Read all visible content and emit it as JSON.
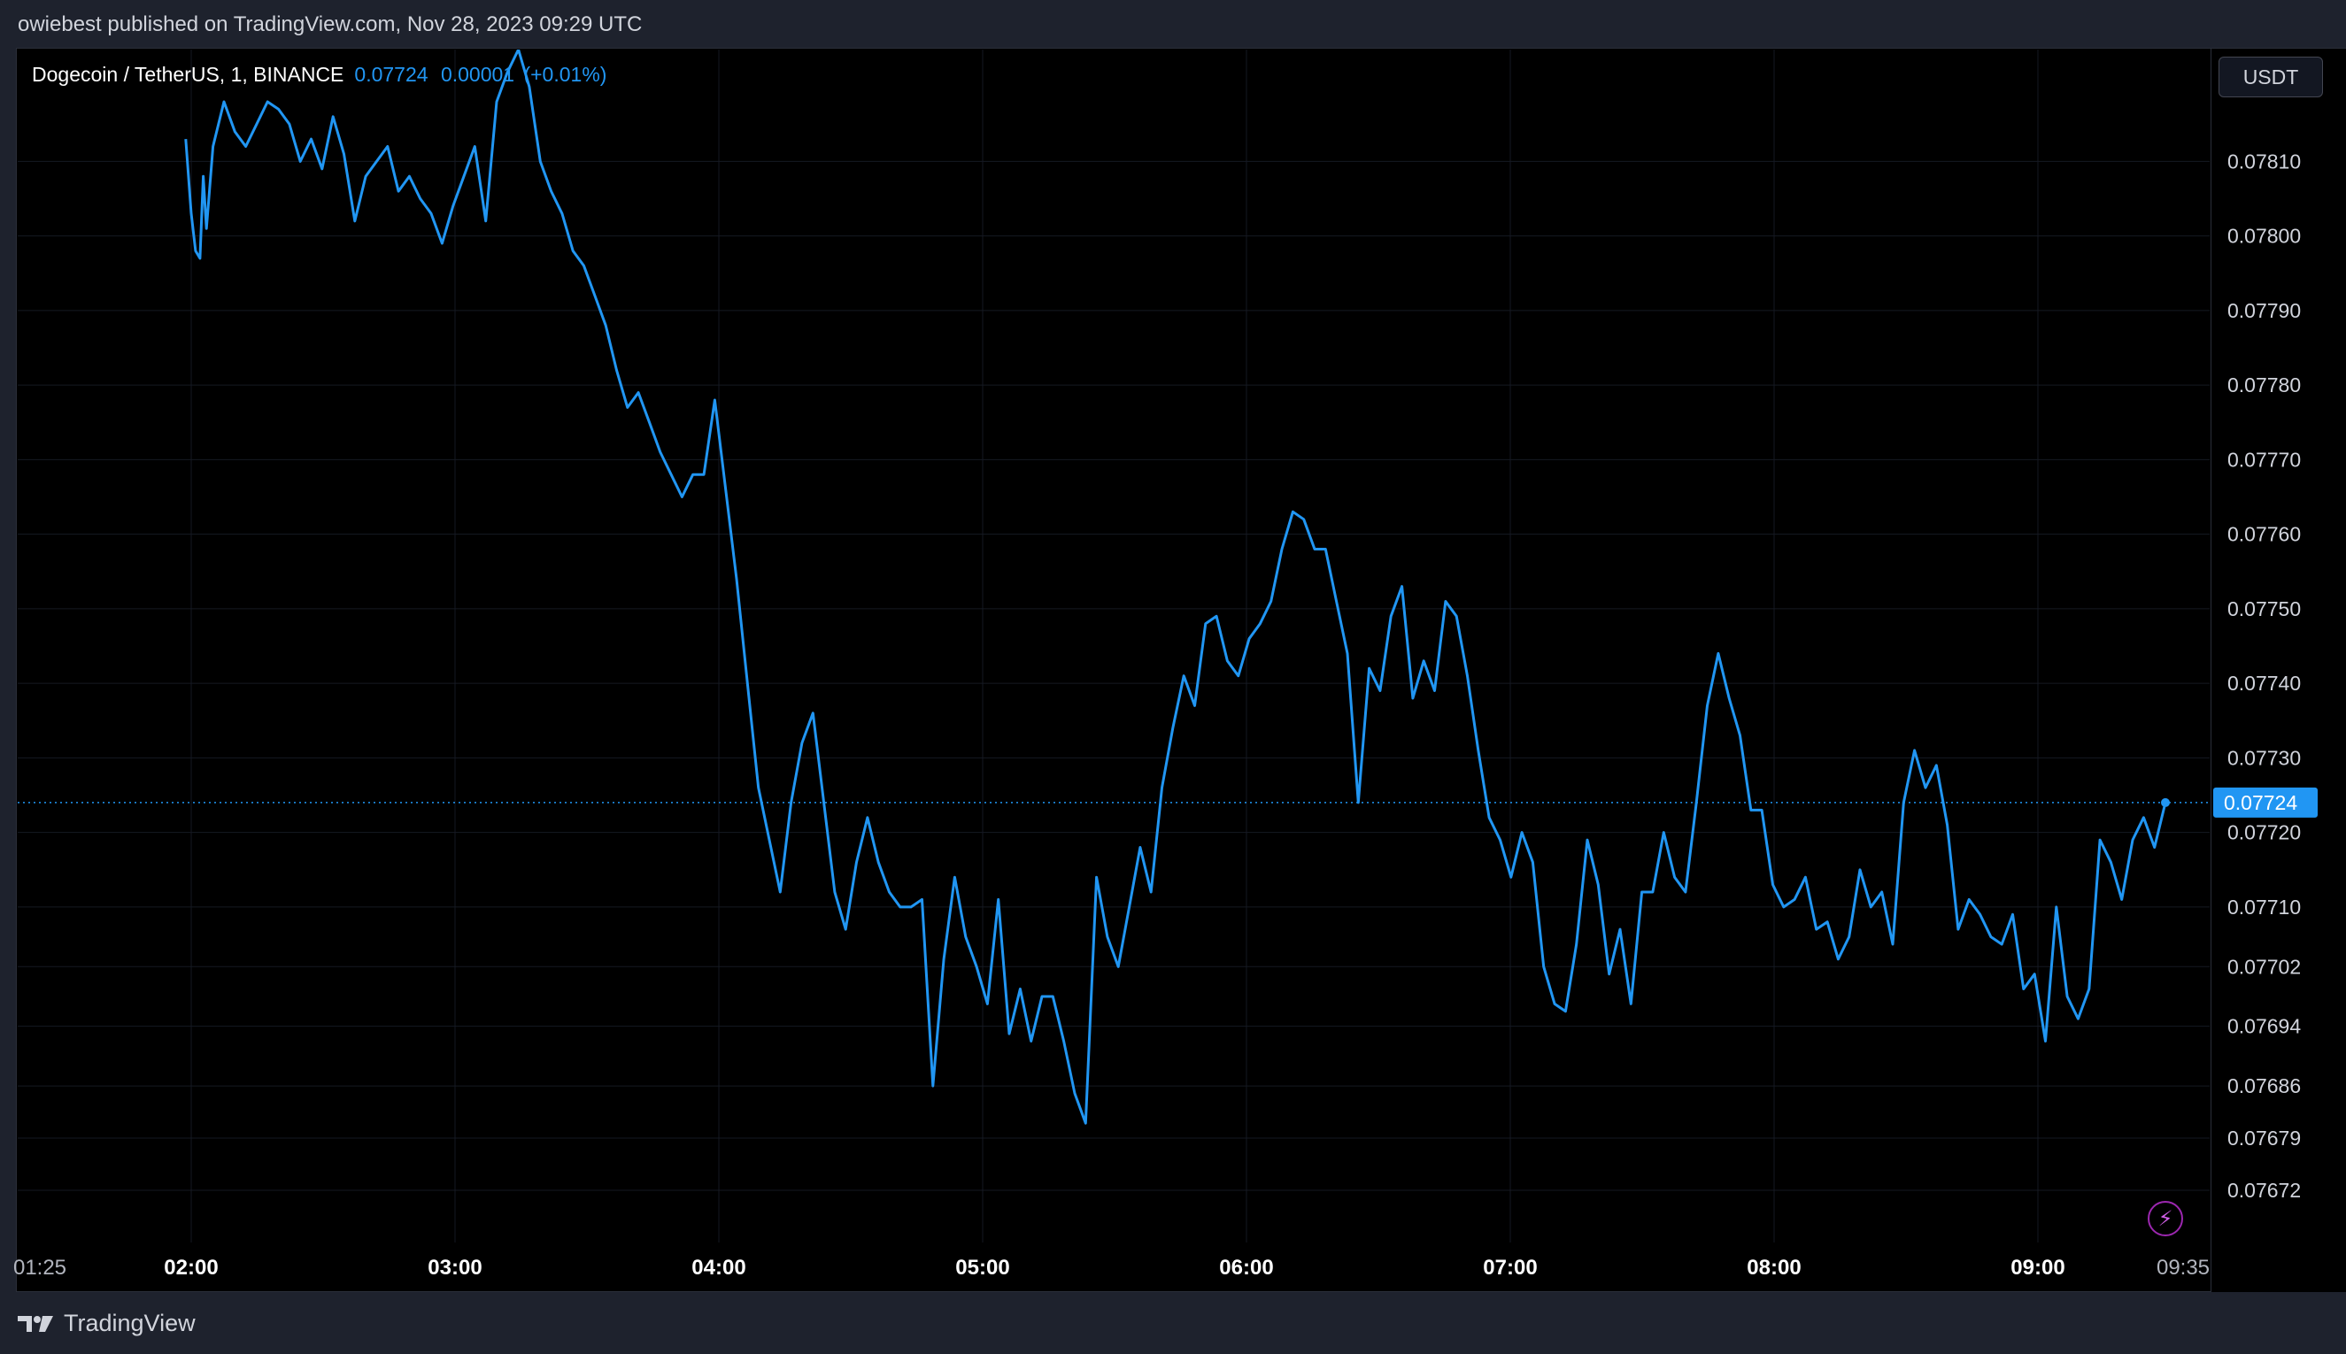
{
  "header": {
    "published_text": "owiebest published on TradingView.com, Nov 28, 2023 09:29 UTC"
  },
  "symbol": {
    "name": "Dogecoin / TetherUS, 1, BINANCE",
    "price": "0.07724",
    "change": "0.00001",
    "change_pct": "(+0.01%)"
  },
  "currency_button": {
    "label": "USDT"
  },
  "footer": {
    "brand": "TradingView"
  },
  "icons": {
    "logo": "tradingview-logo-icon",
    "lightning": "lightning-icon"
  },
  "colors": {
    "line": "#2196f3",
    "background": "#000000",
    "grid": "#151922",
    "text": "#d1d4dc",
    "price_label_bg": "#2196f3"
  },
  "chart_data": {
    "type": "line",
    "y_tick_labels": [
      "0.07810",
      "0.07800",
      "0.07790",
      "0.07780",
      "0.07770",
      "0.07760",
      "0.07750",
      "0.07740",
      "0.07730",
      "0.07720",
      "0.07710",
      "0.07702",
      "0.07694",
      "0.07686",
      "0.07679",
      "0.07672"
    ],
    "x_tick_labels": [
      "01:25",
      "02:00",
      "03:00",
      "04:00",
      "05:00",
      "06:00",
      "07:00",
      "08:00",
      "09:00",
      "09:35"
    ],
    "last_price_label": "0.07724",
    "last_price": 0.07724,
    "series": [
      {
        "values": [
          [
            1.5,
            0.07813
          ],
          [
            2,
            0.07803
          ],
          [
            2.4,
            0.07798
          ],
          [
            2.8,
            0.07797
          ],
          [
            3.1,
            0.07808
          ],
          [
            3.4,
            0.07801
          ],
          [
            4,
            0.07812
          ],
          [
            5,
            0.07818
          ],
          [
            6,
            0.07814
          ],
          [
            7,
            0.07812
          ],
          [
            8,
            0.07815
          ],
          [
            9,
            0.07818
          ],
          [
            10,
            0.07817
          ],
          [
            11,
            0.07815
          ],
          [
            12,
            0.0781
          ],
          [
            13,
            0.07813
          ],
          [
            14,
            0.07809
          ],
          [
            15,
            0.07816
          ],
          [
            16,
            0.07811
          ],
          [
            17,
            0.07802
          ],
          [
            18,
            0.07808
          ],
          [
            19,
            0.0781
          ],
          [
            20,
            0.07812
          ],
          [
            21,
            0.07806
          ],
          [
            22,
            0.07808
          ],
          [
            23,
            0.07805
          ],
          [
            24,
            0.07803
          ],
          [
            25,
            0.07799
          ],
          [
            26,
            0.07804
          ],
          [
            27,
            0.07808
          ],
          [
            28,
            0.07812
          ],
          [
            29,
            0.07802
          ],
          [
            30,
            0.07818
          ],
          [
            31,
            0.07822
          ],
          [
            32,
            0.07825
          ],
          [
            33,
            0.0782
          ],
          [
            34,
            0.0781
          ],
          [
            35,
            0.07806
          ],
          [
            36,
            0.07803
          ],
          [
            37,
            0.07798
          ],
          [
            38,
            0.07796
          ],
          [
            39,
            0.07792
          ],
          [
            40,
            0.07788
          ],
          [
            41,
            0.07782
          ],
          [
            42,
            0.07777
          ],
          [
            43,
            0.07779
          ],
          [
            44,
            0.07775
          ],
          [
            45,
            0.07771
          ],
          [
            46,
            0.07768
          ],
          [
            47,
            0.07765
          ],
          [
            48,
            0.07768
          ],
          [
            49,
            0.07768
          ],
          [
            50,
            0.07778
          ],
          [
            51,
            0.07766
          ],
          [
            52,
            0.07754
          ],
          [
            53,
            0.0774
          ],
          [
            54,
            0.07726
          ],
          [
            55,
            0.07719
          ],
          [
            56,
            0.07712
          ],
          [
            57,
            0.07724
          ],
          [
            58,
            0.07732
          ],
          [
            59,
            0.07736
          ],
          [
            60,
            0.07724
          ],
          [
            61,
            0.07712
          ],
          [
            62,
            0.07707
          ],
          [
            63,
            0.07716
          ],
          [
            64,
            0.07722
          ],
          [
            65,
            0.07716
          ],
          [
            66,
            0.07712
          ],
          [
            67,
            0.0771
          ],
          [
            68,
            0.0771
          ],
          [
            69,
            0.07711
          ],
          [
            70,
            0.07686
          ],
          [
            71,
            0.07703
          ],
          [
            72,
            0.07714
          ],
          [
            73,
            0.07706
          ],
          [
            74,
            0.07702
          ],
          [
            75,
            0.07697
          ],
          [
            76,
            0.07711
          ],
          [
            77,
            0.07693
          ],
          [
            78,
            0.07699
          ],
          [
            79,
            0.07692
          ],
          [
            80,
            0.07698
          ],
          [
            81,
            0.07698
          ],
          [
            82,
            0.07692
          ],
          [
            83,
            0.07685
          ],
          [
            84,
            0.07681
          ],
          [
            85,
            0.07714
          ],
          [
            86,
            0.07706
          ],
          [
            87,
            0.07702
          ],
          [
            88,
            0.0771
          ],
          [
            89,
            0.07718
          ],
          [
            90,
            0.07712
          ],
          [
            91,
            0.07726
          ],
          [
            92,
            0.07734
          ],
          [
            93,
            0.07741
          ],
          [
            94,
            0.07737
          ],
          [
            95,
            0.07748
          ],
          [
            96,
            0.07749
          ],
          [
            97,
            0.07743
          ],
          [
            98,
            0.07741
          ],
          [
            99,
            0.07746
          ],
          [
            100,
            0.07748
          ],
          [
            101,
            0.07751
          ],
          [
            102,
            0.07758
          ],
          [
            103,
            0.07763
          ],
          [
            104,
            0.07762
          ],
          [
            105,
            0.07758
          ],
          [
            106,
            0.07758
          ],
          [
            107,
            0.07751
          ],
          [
            108,
            0.07744
          ],
          [
            109,
            0.07724
          ],
          [
            110,
            0.07742
          ],
          [
            111,
            0.07739
          ],
          [
            112,
            0.07749
          ],
          [
            113,
            0.07753
          ],
          [
            114,
            0.07738
          ],
          [
            115,
            0.07743
          ],
          [
            116,
            0.07739
          ],
          [
            117,
            0.07751
          ],
          [
            118,
            0.07749
          ],
          [
            119,
            0.07741
          ],
          [
            120,
            0.07731
          ],
          [
            121,
            0.07722
          ],
          [
            122,
            0.07719
          ],
          [
            123,
            0.07714
          ],
          [
            124,
            0.0772
          ],
          [
            125,
            0.07716
          ],
          [
            126,
            0.07702
          ],
          [
            127,
            0.07697
          ],
          [
            128,
            0.07696
          ],
          [
            129,
            0.07705
          ],
          [
            130,
            0.07719
          ],
          [
            131,
            0.07713
          ],
          [
            132,
            0.07701
          ],
          [
            133,
            0.07707
          ],
          [
            134,
            0.07697
          ],
          [
            135,
            0.07712
          ],
          [
            136,
            0.07712
          ],
          [
            137,
            0.0772
          ],
          [
            138,
            0.07714
          ],
          [
            139,
            0.07712
          ],
          [
            140,
            0.07724
          ],
          [
            141,
            0.07737
          ],
          [
            142,
            0.07744
          ],
          [
            143,
            0.07738
          ],
          [
            144,
            0.07733
          ],
          [
            145,
            0.07723
          ],
          [
            146,
            0.07723
          ],
          [
            147,
            0.07713
          ],
          [
            148,
            0.0771
          ],
          [
            149,
            0.07711
          ],
          [
            150,
            0.07714
          ],
          [
            151,
            0.07707
          ],
          [
            152,
            0.07708
          ],
          [
            153,
            0.07703
          ],
          [
            154,
            0.07706
          ],
          [
            155,
            0.07715
          ],
          [
            156,
            0.0771
          ],
          [
            157,
            0.07712
          ],
          [
            158,
            0.07705
          ],
          [
            159,
            0.07724
          ],
          [
            160,
            0.07731
          ],
          [
            161,
            0.07726
          ],
          [
            162,
            0.07729
          ],
          [
            163,
            0.07721
          ],
          [
            164,
            0.07707
          ],
          [
            165,
            0.07711
          ],
          [
            166,
            0.07709
          ],
          [
            167,
            0.07706
          ],
          [
            168,
            0.07705
          ],
          [
            169,
            0.07709
          ],
          [
            170,
            0.07699
          ],
          [
            171,
            0.07701
          ],
          [
            172,
            0.07692
          ],
          [
            173,
            0.0771
          ],
          [
            174,
            0.07698
          ],
          [
            175,
            0.07695
          ],
          [
            176,
            0.07699
          ],
          [
            177,
            0.07719
          ],
          [
            178,
            0.07716
          ],
          [
            179,
            0.07711
          ],
          [
            180,
            0.07719
          ],
          [
            181,
            0.07722
          ],
          [
            182,
            0.07718
          ],
          [
            183,
            0.07724
          ]
        ]
      }
    ],
    "ylim": [
      0.07665,
      0.07825
    ],
    "xlim": [
      0,
      186
    ],
    "grid": true
  }
}
